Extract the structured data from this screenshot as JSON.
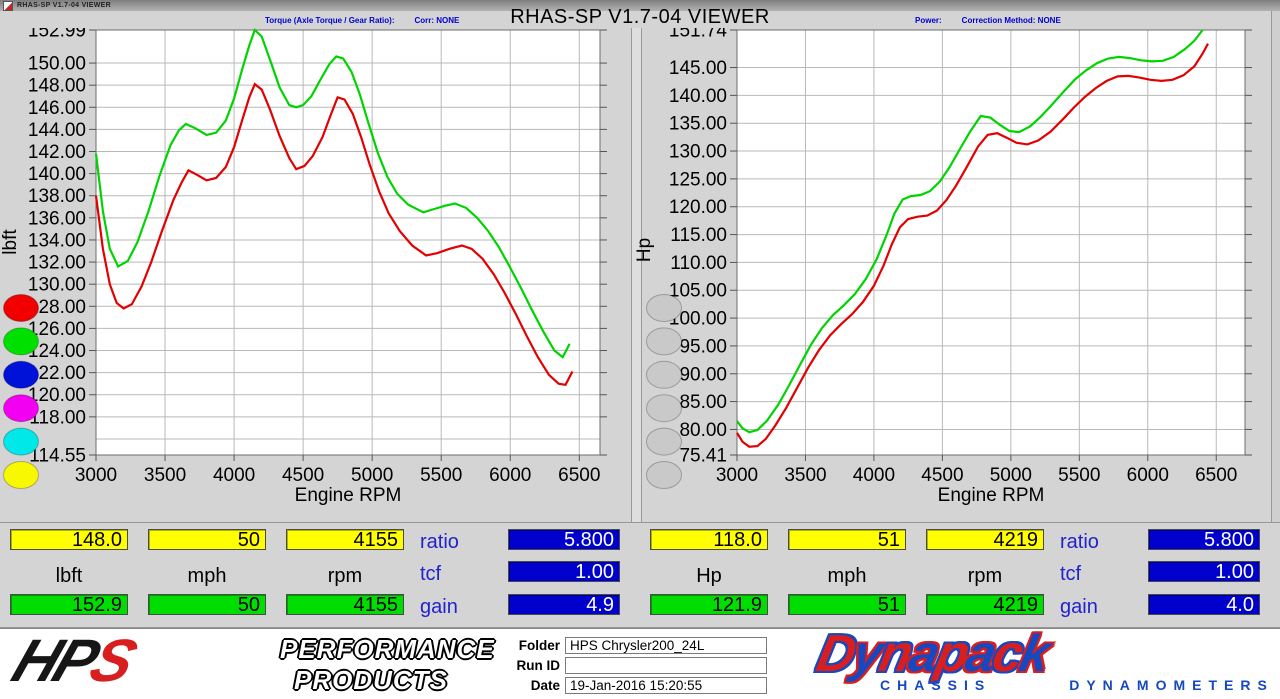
{
  "titlebar": {
    "title": "RHAS-SP V1.7-04  VIEWER"
  },
  "header": {
    "main_title": "RHAS-SP V1.7-04  VIEWER",
    "left_caption": "Torque (Axle Torque / Gear Ratio):",
    "left_corr": "Corr: NONE",
    "right_caption": "Power:",
    "right_corr": "Correction Method: NONE"
  },
  "chart_data": [
    {
      "type": "line",
      "xlabel": "Engine RPM",
      "ylabel": "lbft",
      "xlim": [
        3000,
        6650
      ],
      "ylim": [
        114.55,
        152.99
      ],
      "xticks": [
        3000,
        3500,
        4000,
        4500,
        5000,
        5500,
        6000,
        6500
      ],
      "yticks": [
        {
          "v": 152.99,
          "label": "152.99"
        },
        {
          "v": 150,
          "label": "150.00"
        },
        {
          "v": 148,
          "label": "148.00"
        },
        {
          "v": 146,
          "label": "146.00"
        },
        {
          "v": 144,
          "label": "144.00"
        },
        {
          "v": 142,
          "label": "142.00"
        },
        {
          "v": 140,
          "label": "140.00"
        },
        {
          "v": 138,
          "label": "138.00"
        },
        {
          "v": 136,
          "label": "136.00"
        },
        {
          "v": 134,
          "label": "134.00"
        },
        {
          "v": 132,
          "label": "132.00"
        },
        {
          "v": 130,
          "label": "130.00"
        },
        {
          "v": 128,
          "label": "128.00"
        },
        {
          "v": 126,
          "label": "126.00"
        },
        {
          "v": 124,
          "label": "124.00"
        },
        {
          "v": 122,
          "label": "122.00"
        },
        {
          "v": 120,
          "label": "120.00"
        },
        {
          "v": 118,
          "label": "118.00"
        },
        {
          "v": 114.55,
          "label": "114.55"
        }
      ],
      "ygrid": [
        150,
        148,
        146,
        144,
        142,
        140,
        138,
        136,
        134,
        132,
        130,
        128,
        126,
        124,
        122,
        120,
        118,
        116
      ],
      "run_buttons": [
        "#f20000",
        "#00e000",
        "#0011d8",
        "#f200f2",
        "#00e8e8",
        "#f8f800"
      ],
      "series": [
        {
          "name": "axle-torque-curve-green",
          "color": "#00d400",
          "x": [
            3000,
            3050,
            3100,
            3160,
            3230,
            3300,
            3380,
            3460,
            3540,
            3600,
            3650,
            3720,
            3800,
            3870,
            3940,
            4000,
            4060,
            4110,
            4150,
            4200,
            4260,
            4330,
            4400,
            4450,
            4500,
            4560,
            4630,
            4690,
            4740,
            4790,
            4850,
            4910,
            4970,
            5040,
            5110,
            5180,
            5260,
            5370,
            5450,
            5530,
            5600,
            5680,
            5760,
            5840,
            5920,
            6000,
            6080,
            6160,
            6240,
            6320,
            6380,
            6430
          ],
          "y": [
            141.8,
            136.6,
            133.2,
            131.6,
            132.1,
            133.8,
            136.6,
            139.8,
            142.6,
            143.9,
            144.5,
            144.1,
            143.5,
            143.7,
            144.8,
            146.8,
            149.5,
            151.6,
            152.99,
            152.4,
            150.3,
            147.8,
            146.2,
            146.0,
            146.2,
            147.0,
            148.6,
            149.9,
            150.6,
            150.4,
            149.2,
            147.2,
            144.7,
            141.9,
            139.7,
            138.2,
            137.2,
            136.5,
            136.8,
            137.1,
            137.3,
            136.9,
            136.0,
            134.8,
            133.3,
            131.5,
            129.6,
            127.6,
            125.7,
            124.0,
            123.4,
            124.6
          ]
        },
        {
          "name": "torque-curve-red",
          "color": "#e30000",
          "x": [
            3000,
            3050,
            3100,
            3150,
            3200,
            3260,
            3330,
            3400,
            3480,
            3560,
            3620,
            3670,
            3730,
            3800,
            3870,
            3940,
            4000,
            4060,
            4110,
            4150,
            4200,
            4260,
            4330,
            4400,
            4450,
            4510,
            4570,
            4640,
            4700,
            4750,
            4800,
            4860,
            4920,
            4980,
            5050,
            5120,
            5200,
            5290,
            5390,
            5470,
            5560,
            5650,
            5720,
            5800,
            5880,
            5960,
            6040,
            6120,
            6200,
            6280,
            6350,
            6400,
            6450
          ],
          "y": [
            138.0,
            133.2,
            130.0,
            128.3,
            127.8,
            128.2,
            129.8,
            132.0,
            134.9,
            137.6,
            139.2,
            140.3,
            139.9,
            139.4,
            139.6,
            140.6,
            142.4,
            144.9,
            146.9,
            148.1,
            147.6,
            145.8,
            143.4,
            141.4,
            140.4,
            140.7,
            141.6,
            143.3,
            145.3,
            146.9,
            146.7,
            145.4,
            143.3,
            140.9,
            138.4,
            136.4,
            134.8,
            133.5,
            132.6,
            132.8,
            133.2,
            133.5,
            133.2,
            132.3,
            130.9,
            129.2,
            127.3,
            125.3,
            123.4,
            121.8,
            121.0,
            120.9,
            122.1
          ]
        }
      ]
    },
    {
      "type": "line",
      "xlabel": "Engine RPM",
      "ylabel": "Hp",
      "xlim": [
        3000,
        6710
      ],
      "ylim": [
        75.41,
        151.74
      ],
      "xticks": [
        3000,
        3500,
        4000,
        4500,
        5000,
        5500,
        6000,
        6500
      ],
      "yticks": [
        {
          "v": 151.74,
          "label": "151.74"
        },
        {
          "v": 145,
          "label": "145.00"
        },
        {
          "v": 140,
          "label": "140.00"
        },
        {
          "v": 135,
          "label": "135.00"
        },
        {
          "v": 130,
          "label": "130.00"
        },
        {
          "v": 125,
          "label": "125.00"
        },
        {
          "v": 120,
          "label": "120.00"
        },
        {
          "v": 115,
          "label": "115.00"
        },
        {
          "v": 110,
          "label": "110.00"
        },
        {
          "v": 105,
          "label": "105.00"
        },
        {
          "v": 100,
          "label": "100.00"
        },
        {
          "v": 95,
          "label": "95.00"
        },
        {
          "v": 90,
          "label": "90.00"
        },
        {
          "v": 85,
          "label": "85.00"
        },
        {
          "v": 80,
          "label": "80.00"
        },
        {
          "v": 75.41,
          "label": "75.41"
        }
      ],
      "ygrid": [
        145,
        140,
        135,
        130,
        125,
        120,
        115,
        110,
        105,
        100,
        95,
        90,
        85,
        80
      ],
      "run_buttons": [
        "#c9c9c9",
        "#c9c9c9",
        "#c9c9c9",
        "#c9c9c9",
        "#c9c9c9",
        "#c9c9c9"
      ],
      "series": [
        {
          "name": "power-curve-green",
          "color": "#00d400",
          "x": [
            3000,
            3040,
            3090,
            3150,
            3220,
            3300,
            3380,
            3460,
            3540,
            3620,
            3700,
            3780,
            3860,
            3940,
            4020,
            4090,
            4150,
            4210,
            4270,
            4340,
            4410,
            4480,
            4550,
            4620,
            4700,
            4780,
            4850,
            4920,
            4990,
            5060,
            5140,
            5220,
            5300,
            5390,
            5470,
            5550,
            5630,
            5710,
            5790,
            5870,
            5950,
            6030,
            6110,
            6190,
            6270,
            6340,
            6400
          ],
          "y": [
            81.5,
            80.2,
            79.5,
            79.9,
            81.6,
            84.4,
            87.9,
            91.6,
            95.2,
            98.2,
            100.5,
            102.3,
            104.3,
            107.0,
            110.6,
            114.8,
            118.8,
            121.3,
            121.9,
            122.1,
            122.8,
            124.5,
            127.0,
            130.0,
            133.4,
            136.3,
            136.0,
            134.7,
            133.6,
            133.4,
            134.4,
            136.2,
            138.3,
            140.8,
            142.9,
            144.5,
            145.8,
            146.6,
            146.9,
            146.7,
            146.3,
            146.1,
            146.2,
            146.9,
            148.3,
            149.8,
            151.74
          ]
        },
        {
          "name": "power-curve-red",
          "color": "#e30000",
          "x": [
            3000,
            3040,
            3090,
            3150,
            3210,
            3280,
            3360,
            3440,
            3520,
            3600,
            3680,
            3760,
            3840,
            3920,
            4000,
            4070,
            4130,
            4190,
            4250,
            4320,
            4390,
            4460,
            4530,
            4600,
            4680,
            4760,
            4830,
            4900,
            4970,
            5040,
            5120,
            5200,
            5290,
            5380,
            5460,
            5540,
            5620,
            5700,
            5780,
            5860,
            5940,
            6020,
            6100,
            6180,
            6260,
            6340,
            6400,
            6440
          ],
          "y": [
            79.4,
            77.8,
            76.9,
            77.0,
            78.3,
            80.7,
            83.9,
            87.5,
            91.1,
            94.3,
            96.9,
            98.9,
            100.7,
            102.9,
            105.8,
            109.4,
            113.2,
            116.3,
            117.8,
            118.2,
            118.4,
            119.3,
            121.2,
            123.8,
            127.2,
            130.8,
            132.9,
            133.2,
            132.4,
            131.5,
            131.2,
            131.9,
            133.5,
            135.7,
            137.8,
            139.7,
            141.3,
            142.6,
            143.4,
            143.5,
            143.2,
            142.8,
            142.6,
            142.8,
            143.6,
            145.2,
            147.5,
            149.3
          ]
        }
      ]
    }
  ],
  "readouts": {
    "left": {
      "row1": [
        "148.0",
        "50",
        "4155"
      ],
      "units": [
        "lbft",
        "mph",
        "rpm"
      ],
      "row2": [
        "152.9",
        "50",
        "4155"
      ],
      "params": [
        {
          "label": "ratio",
          "value": "5.800"
        },
        {
          "label": "tcf",
          "value": "1.00"
        },
        {
          "label": "gain",
          "value": "4.9"
        }
      ]
    },
    "right": {
      "row1": [
        "118.0",
        "51",
        "4219"
      ],
      "units": [
        "Hp",
        "mph",
        "rpm"
      ],
      "row2": [
        "121.9",
        "51",
        "4219"
      ],
      "params": [
        {
          "label": "ratio",
          "value": "5.800"
        },
        {
          "label": "tcf",
          "value": "1.00"
        },
        {
          "label": "gain",
          "value": "4.0"
        }
      ]
    }
  },
  "footer": {
    "hps": {
      "letters": [
        {
          "t": "H",
          "fill": "#161616"
        },
        {
          "t": "P",
          "fill": "#161616"
        },
        {
          "t": "S",
          "fill": "#d81e1e"
        }
      ],
      "line1": "PERFORMANCE",
      "line2": "PRODUCTS"
    },
    "form": {
      "rows": [
        {
          "label": "Folder",
          "value": "HPS Chrysler200_24L"
        },
        {
          "label": "Run ID",
          "value": ""
        },
        {
          "label": "Date",
          "value": "19-Jan-2016  15:20:55"
        }
      ]
    },
    "dynapack": {
      "letters": [
        {
          "t": "D",
          "fill": "#d81e1e",
          "edge": "#1648c0"
        },
        {
          "t": "y",
          "fill": "#1648c0",
          "edge": "#d81e1e"
        },
        {
          "t": "n",
          "fill": "#d81e1e",
          "edge": "#1648c0"
        },
        {
          "t": "a",
          "fill": "#1648c0",
          "edge": "#d81e1e"
        },
        {
          "t": "p",
          "fill": "#d81e1e",
          "edge": "#1648c0"
        },
        {
          "t": "a",
          "fill": "#1648c0",
          "edge": "#d81e1e"
        },
        {
          "t": "c",
          "fill": "#d81e1e",
          "edge": "#1648c0"
        },
        {
          "t": "k",
          "fill": "#1648c0",
          "edge": "#d81e1e"
        }
      ],
      "sub1": "CHASSIS",
      "sub2": "DYNAMOMETERS"
    }
  }
}
